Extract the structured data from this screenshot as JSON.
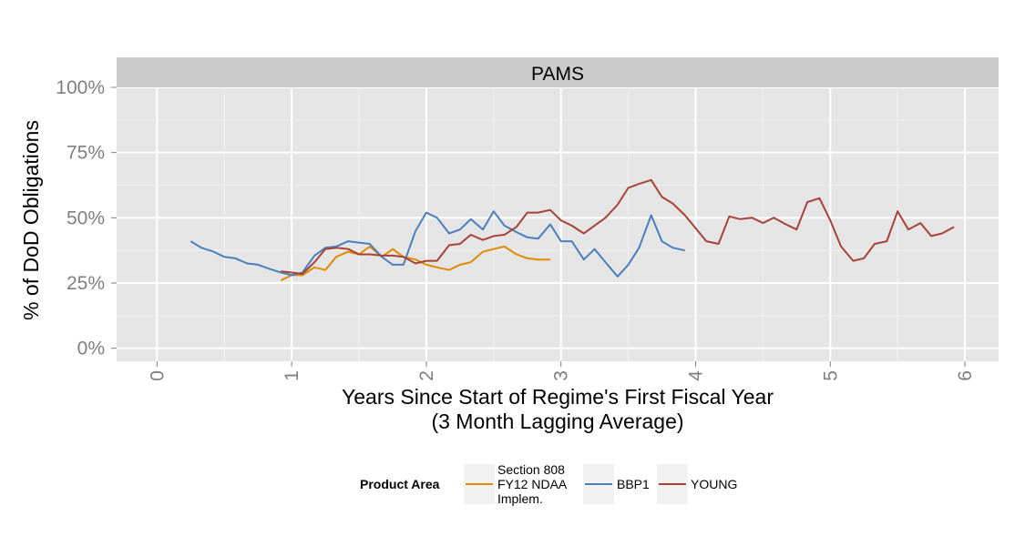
{
  "chart_data": {
    "type": "line",
    "facet_label": "PAMS",
    "xlabel": "Years Since Start of Regime's First Fiscal Year",
    "xlabel_sub": "(3 Month Lagging Average)",
    "ylabel": "% of DoD Obligations",
    "xlim": [
      -0.3,
      6.25
    ],
    "ylim": [
      -0.05,
      1.0
    ],
    "x_ticks": [
      0,
      1,
      2,
      3,
      4,
      5,
      6
    ],
    "x_tick_labels": [
      "0",
      "1",
      "2",
      "3",
      "4",
      "5",
      "6"
    ],
    "y_ticks": [
      0,
      0.25,
      0.5,
      0.75,
      1.0
    ],
    "y_tick_labels": [
      "0%",
      "25%",
      "50%",
      "75%",
      "100%"
    ],
    "grid": true,
    "legend": {
      "title": "Product Area",
      "position": "bottom",
      "entries": [
        {
          "label_lines": [
            "Section 808",
            "FY12 NDAA",
            "Implem."
          ],
          "color": "#e08b00"
        },
        {
          "label_lines": [
            "BBP1"
          ],
          "color": "#4a7fbd"
        },
        {
          "label_lines": [
            "YOUNG"
          ],
          "color": "#a84238"
        }
      ]
    },
    "series": [
      {
        "color": "#e08b00",
        "x": [
          0.92,
          1.0,
          1.08,
          1.17,
          1.25,
          1.33,
          1.42,
          1.5,
          1.58,
          1.67,
          1.75,
          1.83,
          1.92,
          2.0,
          2.08,
          2.17,
          2.25,
          2.33,
          2.42,
          2.5,
          2.58,
          2.67,
          2.75,
          2.83,
          2.92
        ],
        "y": [
          0.26,
          0.28,
          0.28,
          0.31,
          0.3,
          0.35,
          0.37,
          0.36,
          0.39,
          0.35,
          0.38,
          0.35,
          0.34,
          0.32,
          0.31,
          0.3,
          0.32,
          0.33,
          0.37,
          0.38,
          0.39,
          0.36,
          0.345,
          0.34,
          0.34
        ]
      },
      {
        "color": "#4a7fbd",
        "x": [
          0.25,
          0.33,
          0.42,
          0.5,
          0.58,
          0.67,
          0.75,
          0.83,
          0.92,
          1.0,
          1.08,
          1.17,
          1.25,
          1.33,
          1.42,
          1.5,
          1.58,
          1.67,
          1.75,
          1.83,
          1.92,
          2.0,
          2.08,
          2.17,
          2.25,
          2.33,
          2.42,
          2.5,
          2.58,
          2.67,
          2.75,
          2.83,
          2.92,
          3.0,
          3.08,
          3.17,
          3.25,
          3.33,
          3.42,
          3.5,
          3.58,
          3.67,
          3.75,
          3.83,
          3.92
        ],
        "y": [
          0.41,
          0.385,
          0.37,
          0.35,
          0.345,
          0.325,
          0.32,
          0.305,
          0.29,
          0.28,
          0.29,
          0.355,
          0.385,
          0.39,
          0.41,
          0.405,
          0.4,
          0.35,
          0.32,
          0.32,
          0.45,
          0.52,
          0.5,
          0.44,
          0.455,
          0.495,
          0.455,
          0.525,
          0.47,
          0.445,
          0.425,
          0.42,
          0.475,
          0.41,
          0.41,
          0.34,
          0.38,
          0.33,
          0.275,
          0.32,
          0.385,
          0.51,
          0.41,
          0.385,
          0.375
        ]
      },
      {
        "color": "#a84238",
        "x": [
          0.92,
          1.0,
          1.08,
          1.17,
          1.25,
          1.33,
          1.42,
          1.5,
          1.58,
          1.67,
          1.75,
          1.83,
          1.92,
          2.0,
          2.08,
          2.17,
          2.25,
          2.33,
          2.42,
          2.5,
          2.58,
          2.67,
          2.75,
          2.83,
          2.92,
          3.0,
          3.08,
          3.17,
          3.25,
          3.33,
          3.42,
          3.5,
          3.58,
          3.67,
          3.75,
          3.83,
          3.92,
          4.0,
          4.08,
          4.17,
          4.25,
          4.33,
          4.42,
          4.5,
          4.58,
          4.67,
          4.75,
          4.83,
          4.92,
          5.0,
          5.08,
          5.17,
          5.25,
          5.33,
          5.42,
          5.5,
          5.58,
          5.67,
          5.75,
          5.83,
          5.92
        ],
        "y": [
          0.295,
          0.29,
          0.285,
          0.33,
          0.38,
          0.385,
          0.38,
          0.36,
          0.36,
          0.355,
          0.355,
          0.35,
          0.325,
          0.335,
          0.335,
          0.395,
          0.4,
          0.435,
          0.415,
          0.43,
          0.435,
          0.465,
          0.52,
          0.52,
          0.53,
          0.49,
          0.47,
          0.44,
          0.47,
          0.5,
          0.55,
          0.615,
          0.63,
          0.645,
          0.58,
          0.555,
          0.51,
          0.46,
          0.41,
          0.4,
          0.505,
          0.495,
          0.5,
          0.48,
          0.5,
          0.475,
          0.455,
          0.56,
          0.575,
          0.49,
          0.39,
          0.335,
          0.345,
          0.4,
          0.41,
          0.525,
          0.455,
          0.48,
          0.43,
          0.44,
          0.465
        ]
      }
    ]
  }
}
